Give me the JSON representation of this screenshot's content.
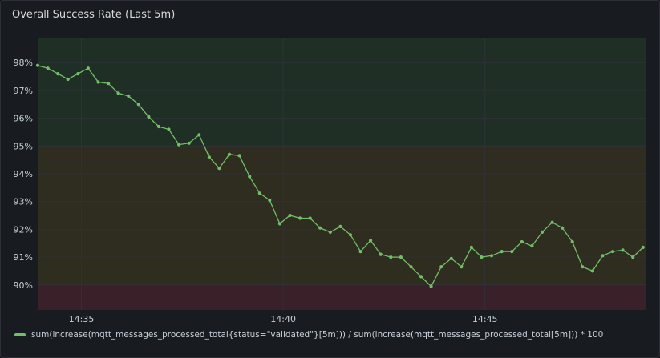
{
  "panel": {
    "title": "Overall Success Rate (Last 5m)"
  },
  "colors": {
    "series": "#73bf69",
    "band_green": "#1f2f26",
    "band_yellow": "#2f2c20",
    "band_red": "#3a2028",
    "grid": "#2e3237"
  },
  "chart_data": {
    "type": "line",
    "title": "Overall Success Rate (Last 5m)",
    "xlabel": "",
    "ylabel": "",
    "x_ticks": [
      "14:35",
      "14:40",
      "14:45"
    ],
    "y_ticks": [
      "90%",
      "91%",
      "92%",
      "93%",
      "94%",
      "95%",
      "96%",
      "97%",
      "98%"
    ],
    "ylim": [
      89.1,
      98.9
    ],
    "xlim": [
      "14:33:55",
      "14:49:00"
    ],
    "grid": true,
    "legend_position": "bottom-left",
    "thresholds": [
      {
        "from": 89.1,
        "to": 90,
        "color": "red"
      },
      {
        "from": 90,
        "to": 95,
        "color": "yellow"
      },
      {
        "from": 95,
        "to": 98.9,
        "color": "green"
      }
    ],
    "series": [
      {
        "name": "sum(increase(mqtt_messages_processed_total{status=\"validated\"}[5m])) / sum(increase(mqtt_messages_processed_total[5m])) * 100",
        "x": [
          "14:33:55",
          "14:34:10",
          "14:34:25",
          "14:34:40",
          "14:34:55",
          "14:35:10",
          "14:35:25",
          "14:35:40",
          "14:35:55",
          "14:36:10",
          "14:36:25",
          "14:36:40",
          "14:36:55",
          "14:37:10",
          "14:37:25",
          "14:37:40",
          "14:37:55",
          "14:38:10",
          "14:38:25",
          "14:38:40",
          "14:38:55",
          "14:39:10",
          "14:39:25",
          "14:39:40",
          "14:39:55",
          "14:40:10",
          "14:40:25",
          "14:40:40",
          "14:40:55",
          "14:41:10",
          "14:41:25",
          "14:41:40",
          "14:41:55",
          "14:42:10",
          "14:42:25",
          "14:42:40",
          "14:42:55",
          "14:43:10",
          "14:43:25",
          "14:43:40",
          "14:43:55",
          "14:44:10",
          "14:44:25",
          "14:44:40",
          "14:44:55",
          "14:45:10",
          "14:45:25",
          "14:45:40",
          "14:45:55",
          "14:46:10",
          "14:46:25",
          "14:46:40",
          "14:46:55",
          "14:47:10",
          "14:47:25",
          "14:47:40",
          "14:47:55",
          "14:48:10",
          "14:48:25",
          "14:48:40",
          "14:48:55"
        ],
        "y": [
          97.9,
          97.8,
          97.6,
          97.4,
          97.6,
          97.8,
          97.3,
          97.25,
          96.9,
          96.8,
          96.5,
          96.05,
          95.7,
          95.6,
          95.05,
          95.1,
          95.4,
          94.6,
          94.2,
          94.7,
          94.65,
          93.9,
          93.3,
          93.05,
          92.2,
          92.5,
          92.4,
          92.4,
          92.05,
          91.9,
          92.1,
          91.8,
          91.2,
          91.6,
          91.1,
          91.0,
          91.0,
          90.65,
          90.3,
          89.95,
          90.65,
          90.95,
          90.65,
          91.35,
          91.0,
          91.05,
          91.2,
          91.2,
          91.55,
          91.4,
          91.9,
          92.25,
          92.05,
          91.55,
          90.65,
          90.5,
          91.05,
          91.2,
          91.25,
          91.0,
          91.35
        ]
      }
    ]
  }
}
